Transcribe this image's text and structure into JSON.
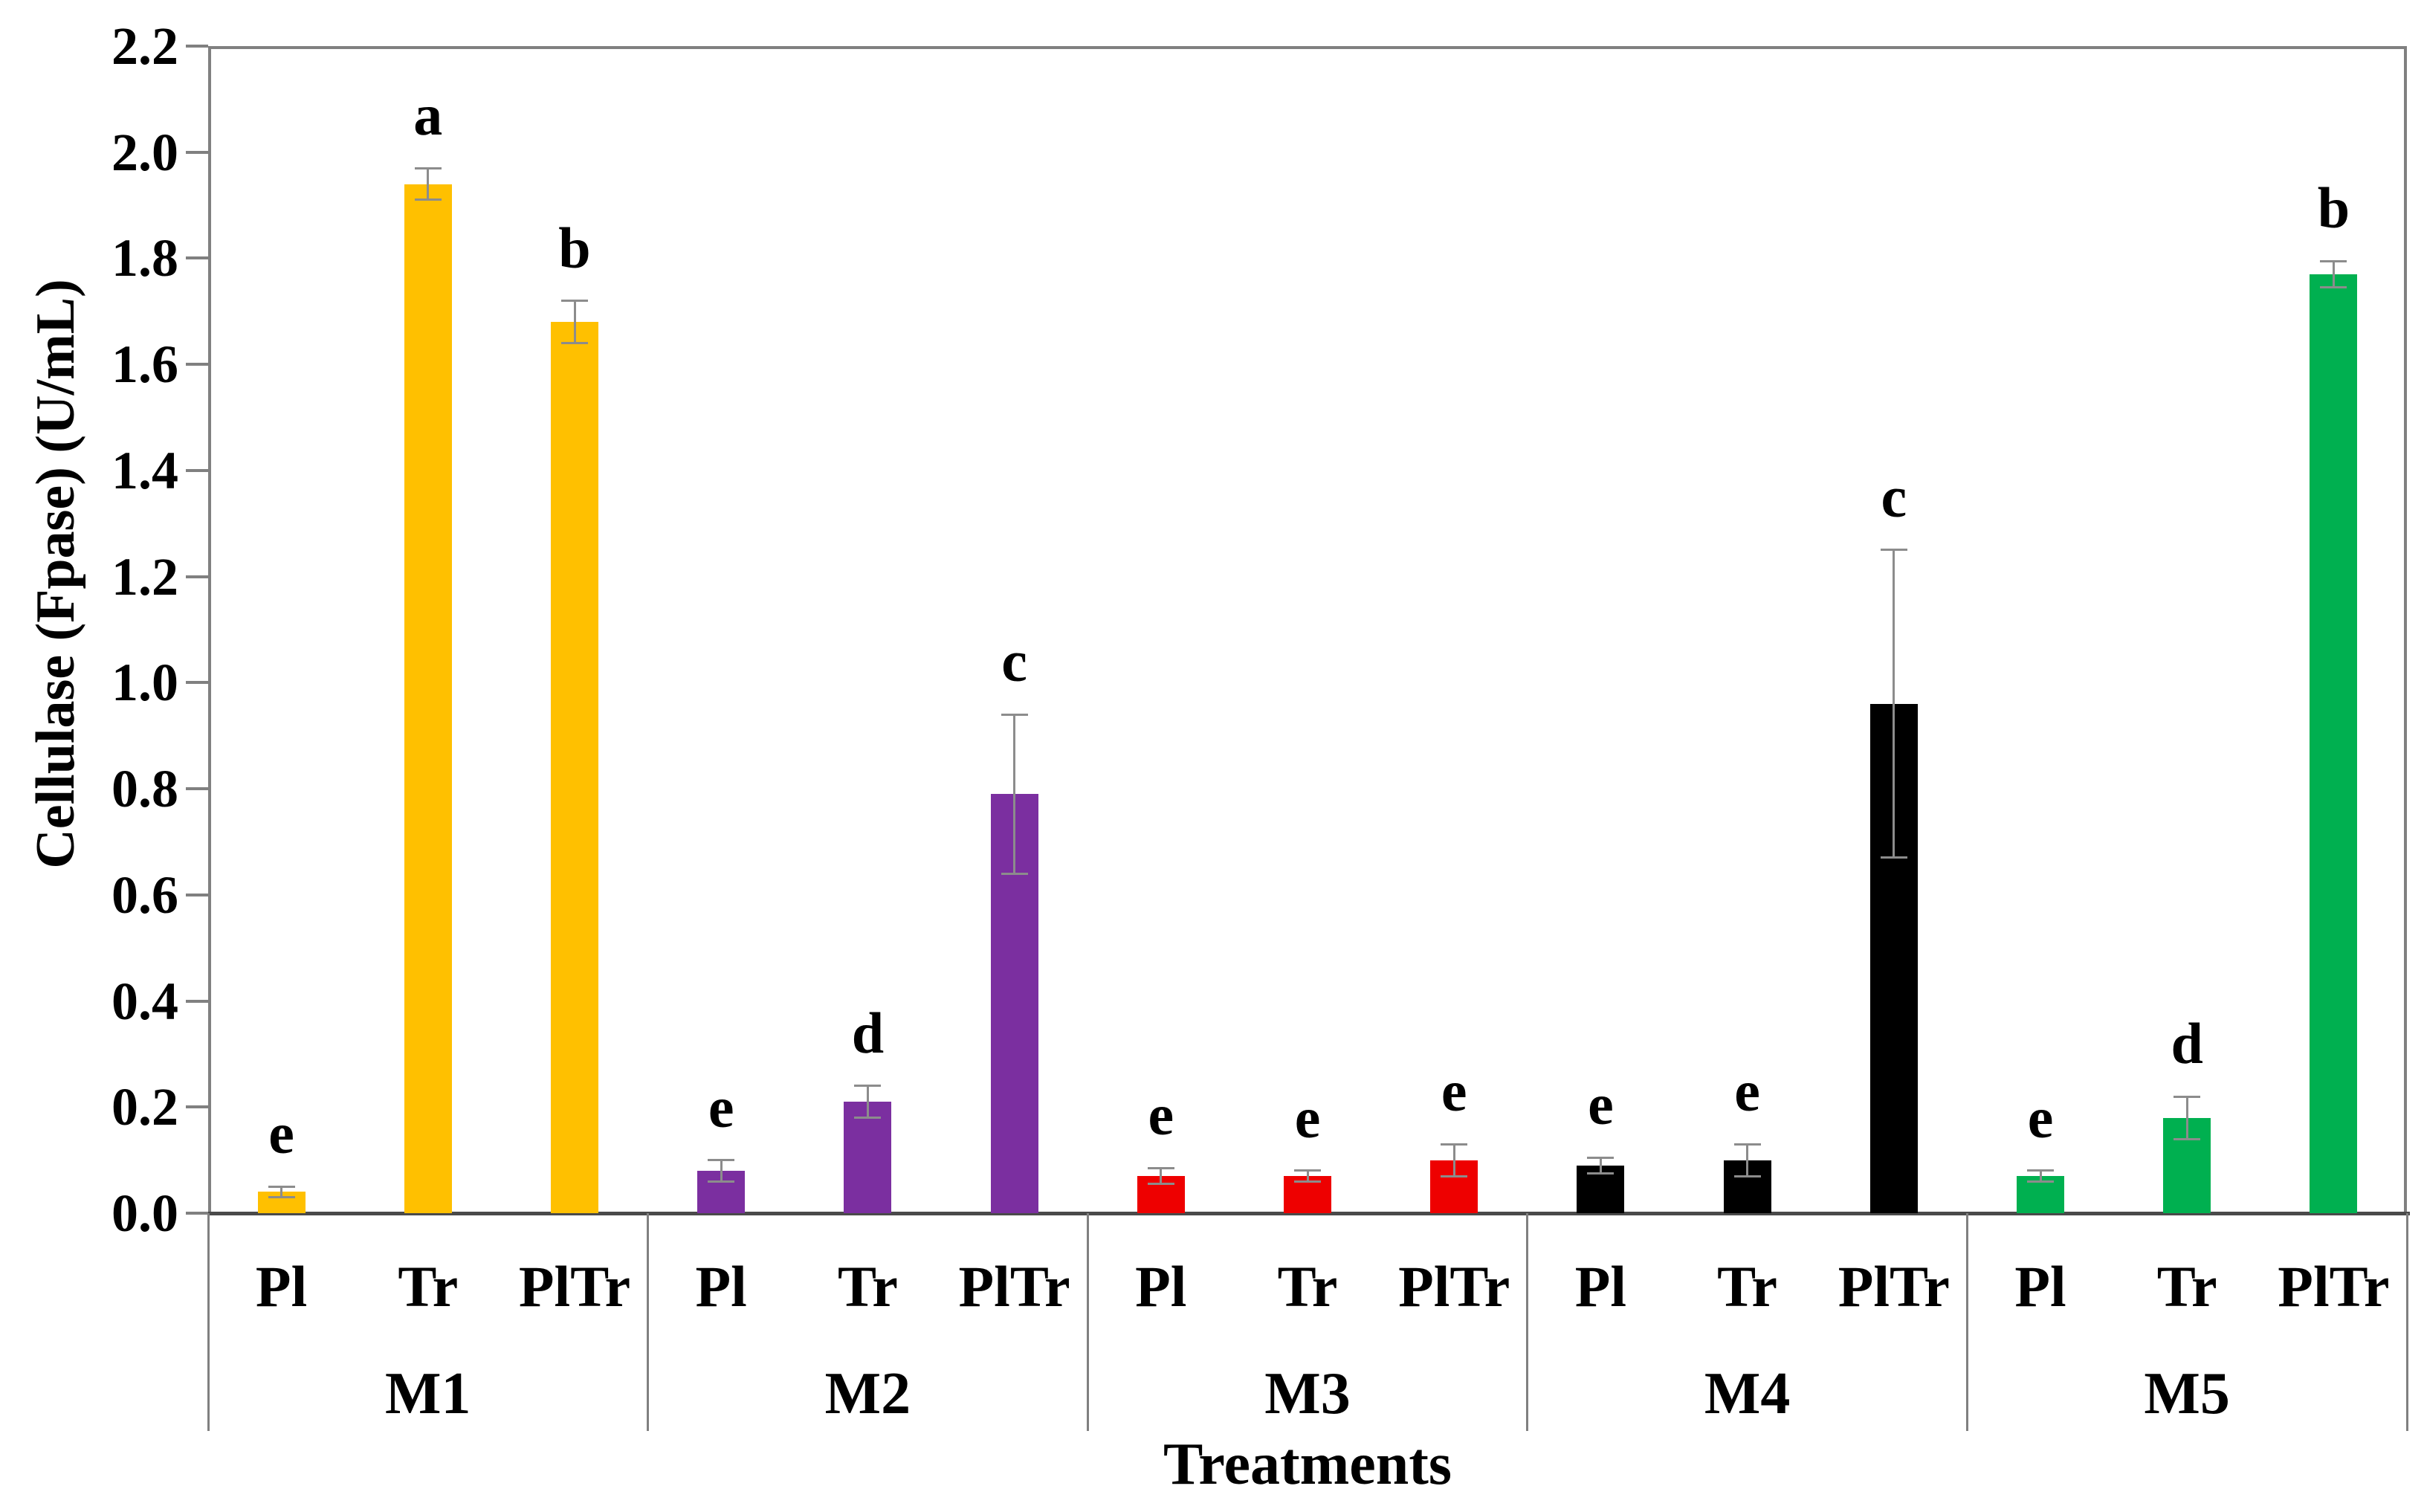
{
  "chart_data": {
    "type": "bar",
    "title": "",
    "xlabel": "Treatments",
    "ylabel": "Cellulase (Fpase) (U/mL)",
    "ylim": [
      0,
      2.2
    ],
    "ytick_labels": [
      "0.0",
      "0.2",
      "0.4",
      "0.6",
      "0.8",
      "1.0",
      "1.2",
      "1.4",
      "1.6",
      "1.8",
      "2.0",
      "2.2"
    ],
    "grid": false,
    "legend": "none",
    "sub_categories": [
      "Pl",
      "Tr",
      "PlTr"
    ],
    "groups": [
      {
        "name": "M1",
        "color": "#FFC000",
        "bars": [
          {
            "treatment": "Pl",
            "value": 0.04,
            "error": 0.01,
            "letter": "e"
          },
          {
            "treatment": "Tr",
            "value": 1.94,
            "error": 0.03,
            "letter": "a"
          },
          {
            "treatment": "PlTr",
            "value": 1.68,
            "error": 0.04,
            "letter": "b"
          }
        ]
      },
      {
        "name": "M2",
        "color": "#7B2FA0",
        "bars": [
          {
            "treatment": "Pl",
            "value": 0.08,
            "error": 0.02,
            "letter": "e"
          },
          {
            "treatment": "Tr",
            "value": 0.21,
            "error": 0.03,
            "letter": "d"
          },
          {
            "treatment": "PlTr",
            "value": 0.79,
            "error": 0.15,
            "letter": "c"
          }
        ]
      },
      {
        "name": "M3",
        "color": "#EE0000",
        "bars": [
          {
            "treatment": "Pl",
            "value": 0.07,
            "error": 0.015,
            "letter": "e"
          },
          {
            "treatment": "Tr",
            "value": 0.07,
            "error": 0.01,
            "letter": "e"
          },
          {
            "treatment": "PlTr",
            "value": 0.1,
            "error": 0.03,
            "letter": "e"
          }
        ]
      },
      {
        "name": "M4",
        "color": "#000000",
        "bars": [
          {
            "treatment": "Pl",
            "value": 0.09,
            "error": 0.015,
            "letter": "e"
          },
          {
            "treatment": "Tr",
            "value": 0.1,
            "error": 0.03,
            "letter": "e"
          },
          {
            "treatment": "PlTr",
            "value": 0.96,
            "error": 0.29,
            "letter": "c"
          }
        ]
      },
      {
        "name": "M5",
        "color": "#00B050",
        "bars": [
          {
            "treatment": "Pl",
            "value": 0.07,
            "error": 0.01,
            "letter": "e"
          },
          {
            "treatment": "Tr",
            "value": 0.18,
            "error": 0.04,
            "letter": "d"
          },
          {
            "treatment": "PlTr",
            "value": 1.77,
            "error": 0.025,
            "letter": "b"
          }
        ]
      }
    ],
    "colors": {
      "axis_line": "#808080",
      "baseline": "#4a4a4a",
      "error_bar": "#8c8c8c",
      "text": "#000000"
    }
  }
}
